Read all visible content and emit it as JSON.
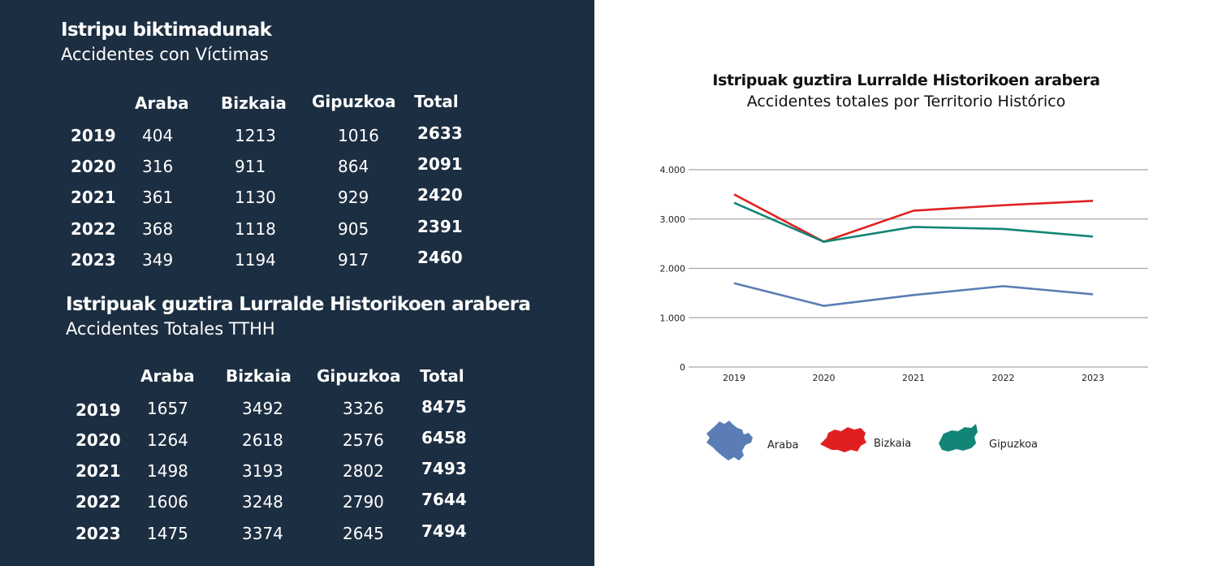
{
  "table1": {
    "title": "Istripu biktimadunak",
    "subtitle": "Accidentes con Víctimas",
    "headers": [
      "Araba",
      "Bizkaia",
      "Gipuzkoa",
      "Total"
    ],
    "rows": [
      {
        "year": "2019",
        "araba": "404",
        "bizkaia": "1213",
        "gipuzkoa": "1016",
        "total": "2633"
      },
      {
        "year": "2020",
        "araba": "316",
        "bizkaia": "911",
        "gipuzkoa": "864",
        "total": "2091"
      },
      {
        "year": "2021",
        "araba": "361",
        "bizkaia": "1130",
        "gipuzkoa": "929",
        "total": "2420"
      },
      {
        "year": "2022",
        "araba": "368",
        "bizkaia": "1118",
        "gipuzkoa": "905",
        "total": "2391"
      },
      {
        "year": "2023",
        "araba": "349",
        "bizkaia": "1194",
        "gipuzkoa": "917",
        "total": "2460"
      }
    ]
  },
  "table2": {
    "title": "Istripuak guztira Lurralde Historikoen arabera",
    "subtitle": "Accidentes Totales TTHH",
    "headers": [
      "Araba",
      "Bizkaia",
      "Gipuzkoa",
      "Total"
    ],
    "rows": [
      {
        "year": "2019",
        "araba": "1657",
        "bizkaia": "3492",
        "gipuzkoa": "3326",
        "total": "8475"
      },
      {
        "year": "2020",
        "araba": "1264",
        "bizkaia": "2618",
        "gipuzkoa": "2576",
        "total": "6458"
      },
      {
        "year": "2021",
        "araba": "1498",
        "bizkaia": "3193",
        "gipuzkoa": "2802",
        "total": "7493"
      },
      {
        "year": "2022",
        "araba": "1606",
        "bizkaia": "3248",
        "gipuzkoa": "2790",
        "total": "7644"
      },
      {
        "year": "2023",
        "araba": "1475",
        "bizkaia": "3374",
        "gipuzkoa": "2645",
        "total": "7494"
      }
    ]
  },
  "chart_data": {
    "type": "line",
    "title": "Istripuak guztira Lurralde Historikoen arabera",
    "subtitle": "Accidentes totales por Territorio Histórico",
    "xlabel": "",
    "ylabel": "",
    "categories": [
      "2019",
      "2020",
      "2021",
      "2022",
      "2023"
    ],
    "yticks": [
      0,
      1000,
      2000,
      3000,
      4000
    ],
    "ytick_labels": [
      "0",
      "1.000",
      "2.000",
      "3.000",
      "4.000"
    ],
    "ylim": [
      0,
      4000
    ],
    "grid": true,
    "legend_position": "bottom",
    "series": [
      {
        "name": "Araba",
        "color": "#5a7db5",
        "values": [
          1700,
          1240,
          1460,
          1640,
          1475
        ]
      },
      {
        "name": "Bizkaia",
        "color": "#e02020",
        "values": [
          3500,
          2540,
          3170,
          3280,
          3370
        ]
      },
      {
        "name": "Gipuzkoa",
        "color": "#138577",
        "values": [
          3330,
          2540,
          2840,
          2800,
          2645
        ]
      }
    ]
  }
}
